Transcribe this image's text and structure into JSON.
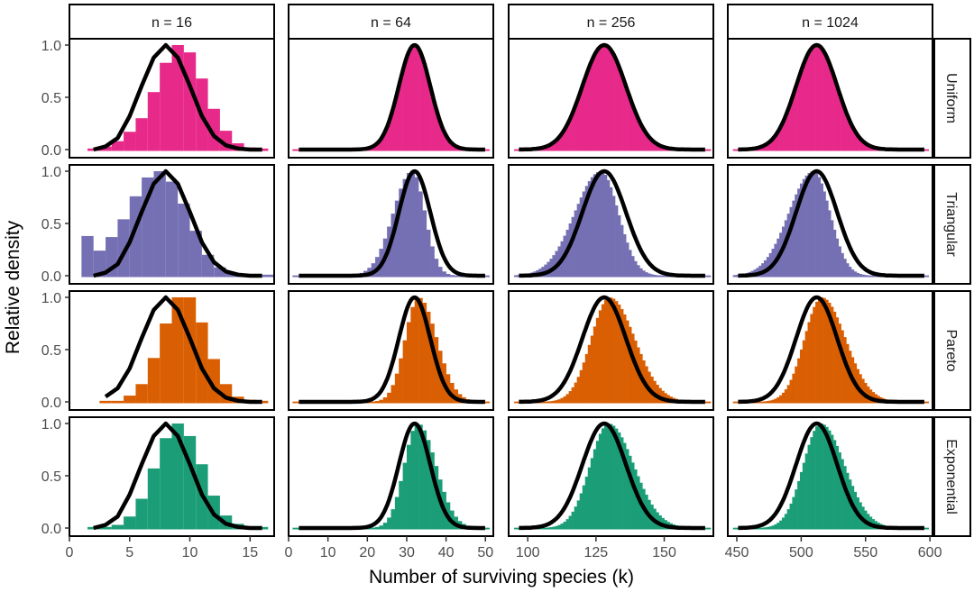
{
  "chart_data": {
    "type": "bar",
    "subtype": "faceted-histogram-with-density-line",
    "xlabel": "Number of surviving species (k)",
    "ylabel": "Relative density",
    "yticks": [
      "0.0",
      "0.5",
      "1.0"
    ],
    "ylim": [
      0,
      1
    ],
    "columns": [
      {
        "label": "n = 16",
        "xlim": [
          0,
          17
        ],
        "xticks": [
          0,
          5,
          10,
          15
        ],
        "mean": 8,
        "sd": 2
      },
      {
        "label": "n = 64",
        "xlim": [
          0,
          52
        ],
        "xticks": [
          0,
          10,
          20,
          30,
          40,
          50
        ],
        "mean": 32,
        "sd": 4
      },
      {
        "label": "n = 256",
        "xlim": [
          93,
          168
        ],
        "xticks": [
          100,
          125,
          150
        ],
        "mean": 128,
        "sd": 8
      },
      {
        "label": "n = 1024",
        "xlim": [
          443,
          602
        ],
        "xticks": [
          450,
          500,
          550,
          600
        ],
        "mean": 512,
        "sd": 16
      }
    ],
    "rows": [
      {
        "label": "Uniform",
        "color": "#E7298A",
        "skew": 0,
        "shift": 0
      },
      {
        "label": "Triangular",
        "color": "#7570B3",
        "skew": -1,
        "shift": -0.15
      },
      {
        "label": "Pareto",
        "color": "#D95F02",
        "skew": 1,
        "shift": 0.25
      },
      {
        "label": "Exponential",
        "color": "#1B9E77",
        "skew": 1,
        "shift": 0.2
      }
    ],
    "n16_histograms": {
      "Uniform": {
        "bins": [
          1.5,
          2.5,
          3.5,
          4.5,
          5.5,
          6.5,
          7.5,
          8.5,
          9.5,
          10.5,
          11.5,
          12.5,
          13.5,
          14.5,
          15.5,
          16.5
        ],
        "values": [
          0.01,
          0.03,
          0.08,
          0.17,
          0.3,
          0.55,
          0.83,
          1.0,
          0.93,
          0.68,
          0.39,
          0.18,
          0.06,
          0.02,
          0.01
        ]
      },
      "Triangular": {
        "bins": [
          1,
          2,
          3,
          4,
          5,
          6,
          7,
          8,
          9,
          10,
          11,
          12,
          13,
          14,
          15,
          16,
          17
        ],
        "values": [
          0.38,
          0.24,
          0.37,
          0.54,
          0.76,
          0.94,
          1.0,
          0.9,
          0.69,
          0.43,
          0.2,
          0.08,
          0.03,
          0.01,
          0.01,
          0.01
        ]
      },
      "Pareto": {
        "bins": [
          2.5,
          3.5,
          4.5,
          5.5,
          6.5,
          7.5,
          8.5,
          9.5,
          10.5,
          11.5,
          12.5,
          13.5,
          14.5,
          15.5,
          16.5
        ],
        "values": [
          0.01,
          0.01,
          0.06,
          0.17,
          0.42,
          0.75,
          1.0,
          1.0,
          0.76,
          0.41,
          0.17,
          0.05,
          0.02,
          0.01
        ]
      },
      "Exponential": {
        "bins": [
          1.5,
          2.5,
          3.5,
          4.5,
          5.5,
          6.5,
          7.5,
          8.5,
          9.5,
          10.5,
          11.5,
          12.5,
          13.5,
          14.5,
          15.5,
          16.5
        ],
        "values": [
          0.01,
          0.01,
          0.03,
          0.11,
          0.28,
          0.57,
          0.86,
          1.0,
          0.88,
          0.61,
          0.31,
          0.12,
          0.04,
          0.01,
          0.01
        ]
      }
    },
    "n16_line_x": [
      2,
      3,
      4,
      5,
      6,
      7,
      8,
      9,
      10,
      11,
      12,
      13,
      14,
      15,
      16
    ],
    "n16_line_y": [
      0.0,
      0.03,
      0.11,
      0.32,
      0.61,
      0.88,
      1.0,
      0.88,
      0.61,
      0.32,
      0.13,
      0.04,
      0.01,
      0.0,
      0.0
    ],
    "line_color": "#000000",
    "grid": false
  }
}
